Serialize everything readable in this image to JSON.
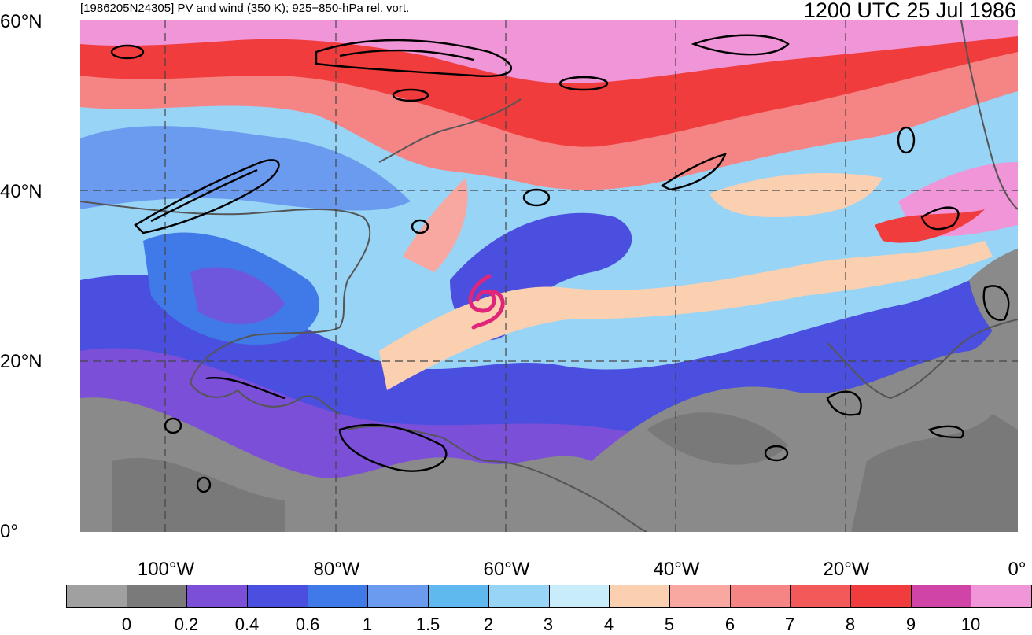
{
  "header": {
    "left_title": "[1986205N24305] PV and wind (350 K); 925−850-hPa rel. vort.",
    "right_title": "1200 UTC 25 Jul 1986"
  },
  "axes": {
    "lat_labels": [
      "60°N",
      "40°N",
      "20°N",
      "0°"
    ],
    "lon_labels": [
      "100°W",
      "80°W",
      "60°W",
      "40°W",
      "20°W",
      "0°"
    ]
  },
  "colorbar": {
    "colors": [
      "#a0a0a0",
      "#7a7a7a",
      "#7b4fd8",
      "#4a4fe0",
      "#3f7ae8",
      "#6a9bef",
      "#5fb8ee",
      "#98d4f6",
      "#c9ecfb",
      "#fbd0b0",
      "#f8a8a0",
      "#f58585",
      "#f25a5a",
      "#f03c3c",
      "#d044a8",
      "#ef95d8"
    ],
    "tick_labels": [
      "0",
      "0.2",
      "0.4",
      "0.6",
      "1",
      "1.5",
      "2",
      "3",
      "4",
      "5",
      "6",
      "7",
      "8",
      "9",
      "10"
    ]
  },
  "map_colors": {
    "storm_symbol": "#e0257a",
    "contour": "#000000",
    "coast": "#555555",
    "grid": "#444444"
  }
}
